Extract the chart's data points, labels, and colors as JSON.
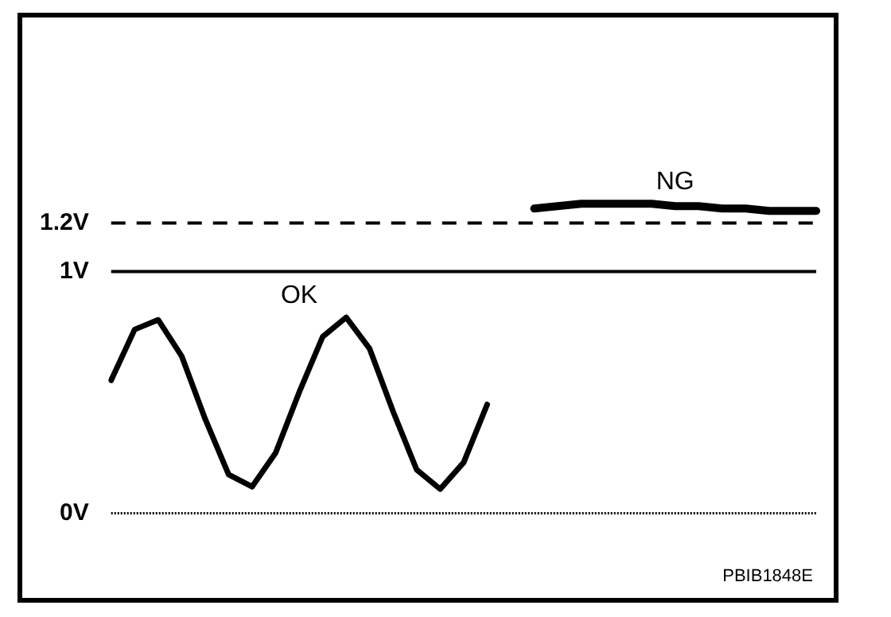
{
  "chart_data": {
    "type": "line",
    "categories": [
      null,
      null,
      null,
      null,
      null,
      null,
      null,
      null,
      null,
      null,
      null,
      null,
      null,
      null,
      null,
      null,
      null,
      null,
      null,
      null,
      null,
      null,
      null,
      null,
      null,
      null,
      null,
      null,
      null,
      null,
      null
    ],
    "series": [
      {
        "name": "OK",
        "color": "#000000",
        "values": [
          0.55,
          0.76,
          0.8,
          0.65,
          0.39,
          0.16,
          0.11,
          0.25,
          0.5,
          0.73,
          0.81,
          0.68,
          0.42,
          0.18,
          0.1,
          0.21,
          0.45,
          null,
          null,
          null,
          null,
          null,
          null,
          null,
          null,
          null,
          null,
          null,
          null,
          null,
          null
        ]
      },
      {
        "name": "NG",
        "color": "#000000",
        "values": [
          null,
          null,
          null,
          null,
          null,
          null,
          null,
          null,
          null,
          null,
          null,
          null,
          null,
          null,
          null,
          null,
          null,
          null,
          1.26,
          1.27,
          1.28,
          1.28,
          1.28,
          1.28,
          1.27,
          1.27,
          1.26,
          1.26,
          1.25,
          1.25,
          1.25
        ]
      }
    ],
    "ylim": [
      -0.35,
      2.05
    ],
    "yticks": [
      {
        "value": 0,
        "label": "0V"
      },
      {
        "value": 1,
        "label": "1V"
      },
      {
        "value": 1.2,
        "label": "1.2V"
      }
    ],
    "ref_lines": [
      {
        "axis": "y",
        "value": 1.2,
        "line_style": "dashed",
        "color": "#000000"
      },
      {
        "axis": "y",
        "value": 1,
        "line_style": "solid",
        "color": "#000000"
      },
      {
        "axis": "y",
        "value": 0,
        "line_style": "dotted",
        "color": "#000000"
      }
    ],
    "annotations": [
      "PBIB1848E"
    ],
    "tick_labels": "y",
    "legend": false,
    "marker": "none"
  }
}
